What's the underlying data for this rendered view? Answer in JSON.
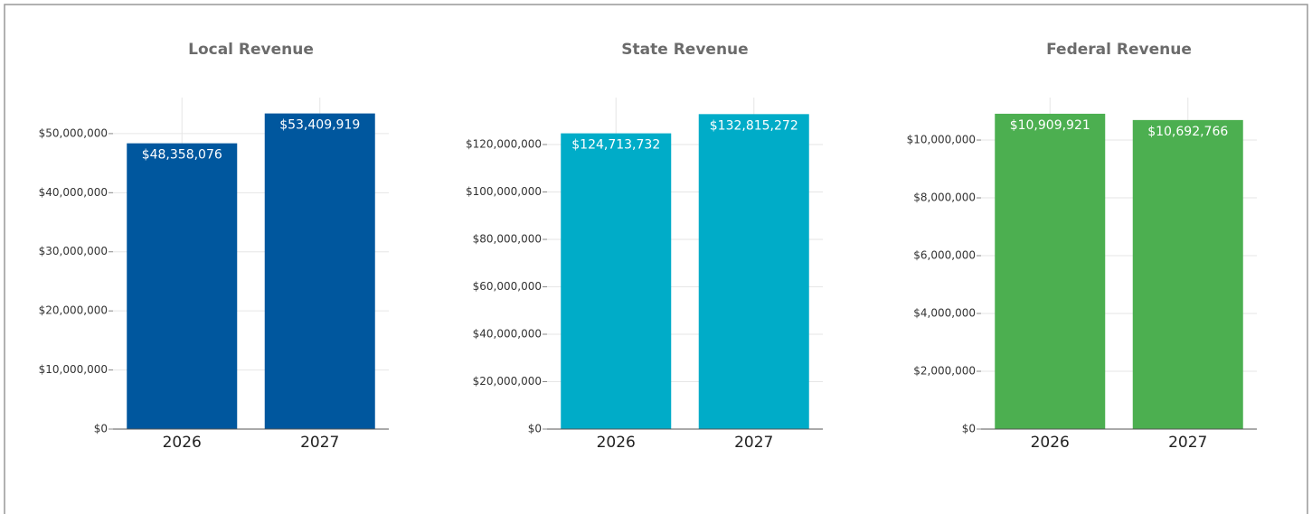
{
  "chart_data": [
    {
      "type": "bar",
      "title": "Local Revenue",
      "categories": [
        "2026",
        "2027"
      ],
      "values": [
        48358076,
        53409919
      ],
      "value_labels": [
        "$48,358,076",
        "$53,409,919"
      ],
      "color": "#00579e",
      "ylim": [
        0,
        56100000
      ],
      "yticks": [
        {
          "value": 0,
          "label": "$0"
        },
        {
          "value": 10000000,
          "label": "$10,000,000"
        },
        {
          "value": 20000000,
          "label": "$20,000,000"
        },
        {
          "value": 30000000,
          "label": "$30,000,000"
        },
        {
          "value": 40000000,
          "label": "$40,000,000"
        },
        {
          "value": 50000000,
          "label": "$50,000,000"
        }
      ],
      "grid": true
    },
    {
      "type": "bar",
      "title": "State Revenue",
      "categories": [
        "2026",
        "2027"
      ],
      "values": [
        124713732,
        132815272
      ],
      "value_labels": [
        "$124,713,732",
        "$132,815,272"
      ],
      "color": "#00acc8",
      "ylim": [
        0,
        139800000
      ],
      "yticks": [
        {
          "value": 0,
          "label": "$0"
        },
        {
          "value": 20000000,
          "label": "$20,000,000"
        },
        {
          "value": 40000000,
          "label": "$40,000,000"
        },
        {
          "value": 60000000,
          "label": "$60,000,000"
        },
        {
          "value": 80000000,
          "label": "$80,000,000"
        },
        {
          "value": 100000000,
          "label": "$100,000,000"
        },
        {
          "value": 120000000,
          "label": "$120,000,000"
        }
      ],
      "grid": true
    },
    {
      "type": "bar",
      "title": "Federal Revenue",
      "categories": [
        "2026",
        "2027"
      ],
      "values": [
        10909921,
        10692766
      ],
      "value_labels": [
        "$10,909,921",
        "$10,692,766"
      ],
      "color": "#4caf50",
      "ylim": [
        0,
        11470000
      ],
      "yticks": [
        {
          "value": 0,
          "label": "$0"
        },
        {
          "value": 2000000,
          "label": "$2,000,000"
        },
        {
          "value": 4000000,
          "label": "$4,000,000"
        },
        {
          "value": 6000000,
          "label": "$6,000,000"
        },
        {
          "value": 8000000,
          "label": "$8,000,000"
        },
        {
          "value": 10000000,
          "label": "$10,000,000"
        }
      ],
      "grid": true
    }
  ]
}
